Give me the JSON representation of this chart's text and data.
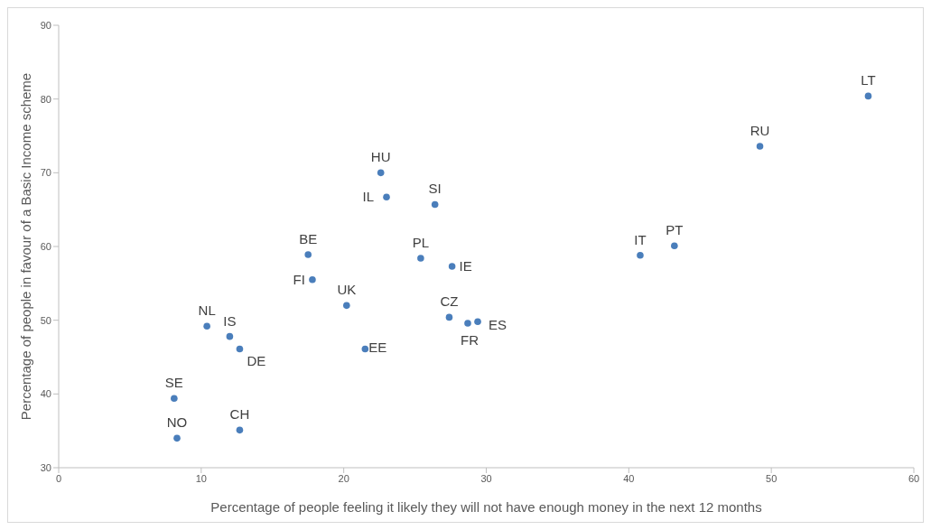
{
  "chart_data": {
    "type": "scatter",
    "xlabel": "Percentage of people feeling it likely they will not have enough money in the next 12 months",
    "ylabel": "Percentage of people in favour of a Basic Income scheme",
    "xlim": [
      0,
      60
    ],
    "xticks": [
      0,
      10,
      20,
      30,
      40,
      50,
      60
    ],
    "ylim": [
      30,
      90
    ],
    "yticks": [
      30,
      40,
      50,
      60,
      70,
      80,
      90
    ],
    "marker": "circle",
    "series": [
      {
        "color": "#4a7ebb",
        "x": [
          56.8,
          49.2,
          22.6,
          23.0,
          26.4,
          17.5,
          25.4,
          27.6,
          40.8,
          43.2,
          17.8,
          20.2,
          27.4,
          28.7,
          29.4,
          10.4,
          12.0,
          12.7,
          21.5,
          8.1,
          12.7,
          8.3
        ],
        "values": [
          80.4,
          73.6,
          70.0,
          66.7,
          65.7,
          58.9,
          58.4,
          57.3,
          58.8,
          60.1,
          55.5,
          52.0,
          50.4,
          49.6,
          49.8,
          49.2,
          47.8,
          46.1,
          46.1,
          39.4,
          35.1,
          34.0
        ]
      }
    ],
    "annotations": [
      {
        "text": "LT",
        "x": 56.8,
        "y": 80.4
      },
      {
        "text": "RU",
        "x": 49.2,
        "y": 73.6
      },
      {
        "text": "HU",
        "x": 22.6,
        "y": 70.0
      },
      {
        "text": "IL",
        "x": 23.0,
        "y": 66.7
      },
      {
        "text": "SI",
        "x": 26.4,
        "y": 65.7
      },
      {
        "text": "BE",
        "x": 17.5,
        "y": 58.9
      },
      {
        "text": "PL",
        "x": 25.4,
        "y": 58.4
      },
      {
        "text": "IE",
        "x": 27.6,
        "y": 57.3
      },
      {
        "text": "IT",
        "x": 40.8,
        "y": 58.8
      },
      {
        "text": "PT",
        "x": 43.2,
        "y": 60.1
      },
      {
        "text": "FI",
        "x": 17.8,
        "y": 55.5
      },
      {
        "text": "UK",
        "x": 20.2,
        "y": 52.0
      },
      {
        "text": "CZ",
        "x": 27.4,
        "y": 50.4
      },
      {
        "text": "FR",
        "x": 28.7,
        "y": 49.6
      },
      {
        "text": "ES",
        "x": 29.4,
        "y": 49.8
      },
      {
        "text": "NL",
        "x": 10.4,
        "y": 49.2
      },
      {
        "text": "IS",
        "x": 12.0,
        "y": 47.8
      },
      {
        "text": "DE",
        "x": 12.7,
        "y": 46.1
      },
      {
        "text": "EE",
        "x": 21.5,
        "y": 46.1
      },
      {
        "text": "SE",
        "x": 8.1,
        "y": 39.4
      },
      {
        "text": "CH",
        "x": 12.7,
        "y": 35.1
      },
      {
        "text": "NO",
        "x": 8.3,
        "y": 34.0
      }
    ]
  }
}
